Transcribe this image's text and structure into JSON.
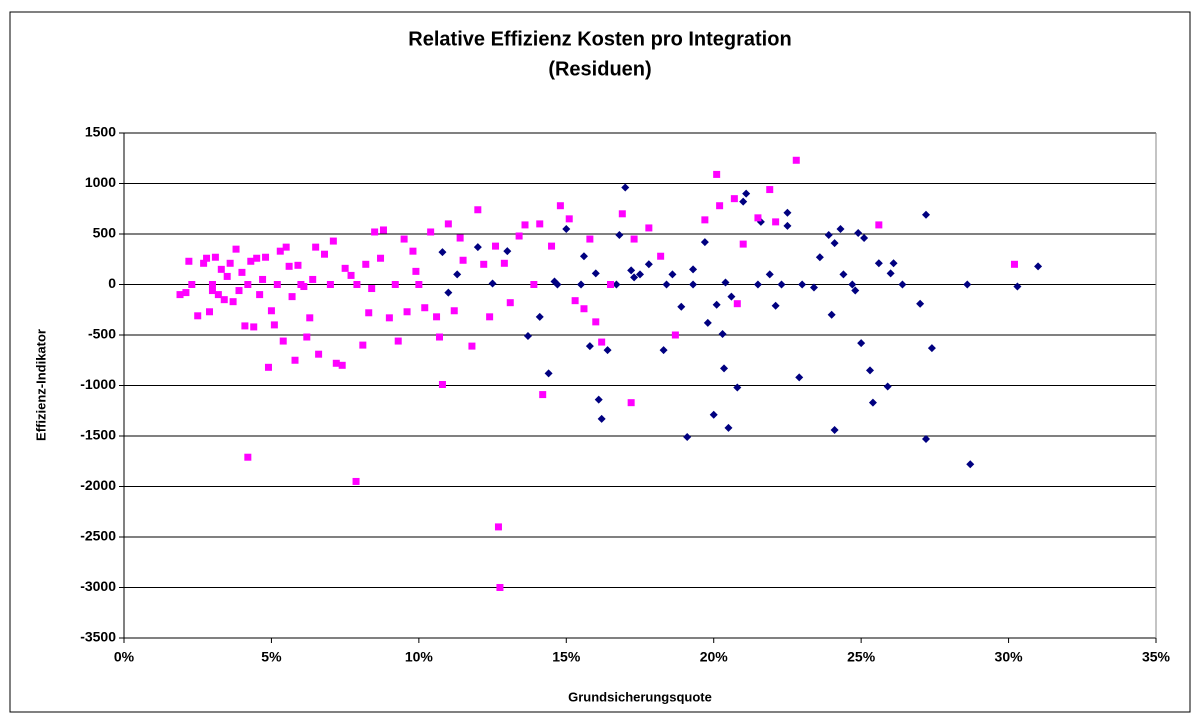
{
  "chart_data": {
    "type": "scatter",
    "title": "Relative Effizienz Kosten pro Integration",
    "subtitle": "(Residuen)",
    "x_label": "Grundsicherungsquote",
    "y_label": "Effizienz-Indikator",
    "xlim": [
      0,
      35
    ],
    "xticks": [
      {
        "value": 0,
        "label": "0%"
      },
      {
        "value": 5,
        "label": "5%"
      },
      {
        "value": 10,
        "label": "10%"
      },
      {
        "value": 15,
        "label": "15%"
      },
      {
        "value": 20,
        "label": "20%"
      },
      {
        "value": 25,
        "label": "25%"
      },
      {
        "value": 30,
        "label": "30%"
      },
      {
        "value": 35,
        "label": "35%"
      }
    ],
    "ylim": [
      -3500,
      1500
    ],
    "yticks": [
      -3500,
      -3000,
      -2500,
      -2000,
      -1500,
      -1000,
      -500,
      0,
      500,
      1000,
      1500
    ],
    "grid": true,
    "series": [
      {
        "color": "#000080",
        "marker": "diamond",
        "x": [
          10.8,
          11.0,
          11.3,
          12.0,
          12.5,
          13.0,
          13.7,
          14.1,
          14.4,
          14.6,
          15.0,
          15.6,
          15.8,
          16.0,
          16.1,
          16.2,
          16.4,
          16.8,
          17.0,
          17.2,
          17.5,
          17.8,
          18.3,
          18.6,
          18.9,
          19.1,
          19.3,
          19.7,
          19.8,
          20.0,
          20.1,
          20.3,
          20.35,
          20.5,
          20.6,
          20.8,
          21.0,
          21.1,
          21.6,
          21.9,
          22.1,
          22.3,
          22.5,
          22.5,
          22.9,
          23.4,
          23.6,
          23.9,
          24.0,
          24.1,
          24.1,
          24.3,
          24.4,
          24.7,
          24.9,
          25.0,
          25.1,
          25.3,
          25.4,
          25.6,
          25.9,
          26.0,
          26.1,
          26.4,
          27.0,
          27.2,
          27.2,
          27.4,
          28.6,
          28.7,
          30.3,
          31.0,
          23.0,
          21.5,
          19.3,
          18.4,
          17.3,
          16.7,
          15.5,
          14.7,
          24.8,
          20.4
        ],
        "values": [
          320,
          -80,
          100,
          370,
          10,
          330,
          -510,
          -320,
          -880,
          30,
          550,
          280,
          -610,
          110,
          -1140,
          -1330,
          -650,
          490,
          960,
          140,
          100,
          200,
          -650,
          100,
          -220,
          -1510,
          150,
          420,
          -380,
          -1290,
          -200,
          -490,
          -830,
          -1420,
          -120,
          -1020,
          820,
          900,
          620,
          100,
          -210,
          0,
          580,
          710,
          -920,
          -30,
          270,
          490,
          -300,
          -1440,
          410,
          550,
          100,
          0,
          510,
          -580,
          460,
          -850,
          -1170,
          210,
          -1010,
          110,
          210,
          0,
          -190,
          690,
          -1530,
          -630,
          0,
          -1780,
          -20,
          180,
          0,
          0,
          0,
          0,
          70,
          0,
          0,
          0,
          -60,
          20
        ]
      },
      {
        "color": "#ff00ff",
        "marker": "square",
        "x": [
          2.1,
          2.2,
          2.3,
          2.5,
          2.7,
          2.8,
          2.9,
          3.0,
          3.1,
          3.2,
          3.3,
          3.4,
          3.5,
          3.6,
          3.7,
          3.8,
          3.9,
          4.0,
          4.1,
          4.2,
          4.3,
          4.4,
          4.5,
          4.6,
          4.7,
          4.8,
          4.9,
          5.0,
          5.1,
          5.2,
          5.3,
          5.4,
          5.5,
          5.6,
          5.7,
          5.8,
          5.9,
          6.0,
          6.2,
          6.3,
          6.4,
          6.5,
          6.6,
          6.8,
          7.0,
          7.1,
          7.2,
          7.4,
          7.5,
          7.7,
          7.9,
          8.1,
          8.2,
          8.3,
          8.5,
          8.7,
          8.8,
          9.0,
          9.2,
          9.3,
          9.5,
          9.6,
          9.8,
          10.0,
          10.2,
          10.4,
          10.6,
          10.7,
          10.8,
          11.0,
          11.2,
          11.5,
          11.8,
          12.0,
          12.2,
          12.4,
          12.6,
          12.7,
          12.75,
          12.9,
          13.1,
          13.4,
          13.6,
          13.9,
          14.1,
          14.2,
          14.5,
          14.8,
          15.1,
          15.3,
          15.6,
          15.8,
          16.0,
          16.2,
          16.5,
          16.9,
          17.2,
          17.3,
          17.8,
          18.2,
          18.7,
          19.7,
          20.1,
          20.2,
          20.7,
          20.8,
          21.0,
          21.5,
          21.9,
          22.1,
          22.8,
          25.6,
          30.2,
          4.2,
          7.87,
          1.9,
          3.0,
          6.1,
          8.4,
          9.9,
          11.4
        ],
        "values": [
          -80,
          230,
          0,
          -310,
          210,
          260,
          -270,
          0,
          270,
          -100,
          150,
          -150,
          80,
          210,
          -170,
          350,
          -60,
          120,
          -410,
          0,
          230,
          -420,
          260,
          -100,
          50,
          270,
          -820,
          -260,
          -400,
          0,
          330,
          -560,
          370,
          180,
          -120,
          -750,
          190,
          0,
          -520,
          -330,
          50,
          370,
          -690,
          300,
          0,
          430,
          -780,
          -800,
          160,
          90,
          0,
          -600,
          200,
          -280,
          520,
          260,
          540,
          -330,
          0,
          -560,
          450,
          -270,
          330,
          0,
          -230,
          520,
          -320,
          -520,
          -990,
          600,
          -260,
          240,
          -610,
          740,
          200,
          -320,
          380,
          -2400,
          -3000,
          210,
          -180,
          480,
          590,
          0,
          600,
          -1090,
          380,
          780,
          650,
          -160,
          -240,
          450,
          -370,
          -570,
          0,
          700,
          -1170,
          450,
          560,
          280,
          -500,
          640,
          1090,
          780,
          850,
          -190,
          400,
          660,
          940,
          620,
          1230,
          590,
          200,
          -1710,
          -1950,
          -100,
          -60,
          -20,
          -40,
          130,
          460
        ]
      }
    ]
  }
}
